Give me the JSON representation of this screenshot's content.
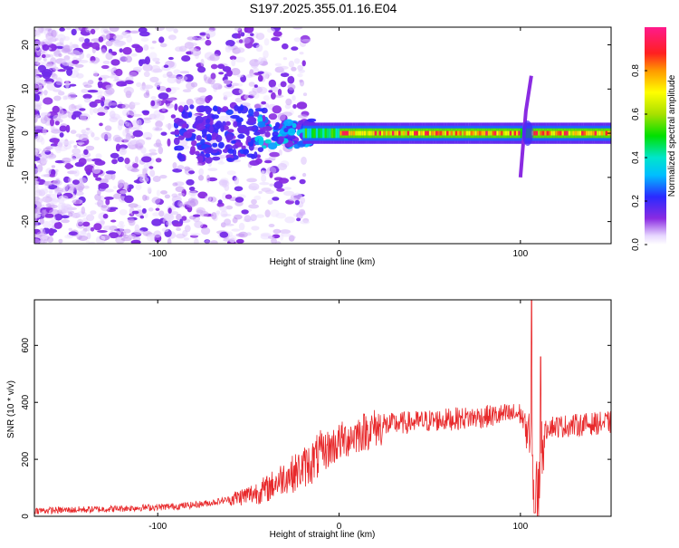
{
  "title": "S197.2025.355.01.16.E04",
  "chart_data": [
    {
      "type": "heatmap",
      "xlabel": "Height of straight line (km)",
      "ylabel": "Frequency (Hz)",
      "xlim": [
        -168,
        150
      ],
      "ylim": [
        -25,
        24
      ],
      "x_ticks": [
        -100,
        0,
        100
      ],
      "y_ticks": [
        -20,
        -10,
        0,
        10,
        20
      ],
      "x_tick_labels": [
        "-100",
        "0",
        "100"
      ],
      "y_tick_labels": [
        "-20",
        "-10",
        "0",
        "10",
        "20"
      ],
      "colorbar": {
        "label": "Normalized spectral amplitude",
        "range": [
          0,
          1
        ],
        "ticks": [
          0.0,
          0.2,
          0.4,
          0.6,
          0.8
        ],
        "tick_labels": [
          "0.0",
          "0.2",
          "0.4",
          "0.6",
          "0.8"
        ],
        "colormap": "rainbow (white-violet-blue-cyan-green-yellow-red-magenta)"
      },
      "features": [
        {
          "name": "noise scatter",
          "x_range": [
            -168,
            -20
          ],
          "freq_range": [
            -25,
            24
          ],
          "amplitude": 0.05
        },
        {
          "name": "central line",
          "x_range": [
            -80,
            150
          ],
          "freq": 0,
          "amplitude_max": 0.9
        },
        {
          "name": "spike",
          "x": 103,
          "freq_range": [
            -10,
            13
          ]
        }
      ]
    },
    {
      "type": "line",
      "xlabel": "Height of straight line (km)",
      "ylabel": "SNR (10 * v/v)",
      "xlim": [
        -168,
        150
      ],
      "ylim": [
        0,
        760
      ],
      "x_ticks": [
        -100,
        0,
        100
      ],
      "y_ticks": [
        0,
        200,
        400,
        600
      ],
      "x_tick_labels": [
        "-100",
        "0",
        "100"
      ],
      "y_tick_labels": [
        "0",
        "200",
        "400",
        "600"
      ],
      "series": [
        {
          "name": "SNR",
          "color": "#e8292b",
          "x": [
            -168,
            -150,
            -130,
            -110,
            -100,
            -90,
            -80,
            -70,
            -60,
            -50,
            -40,
            -30,
            -25,
            -20,
            -15,
            -10,
            -5,
            0,
            5,
            10,
            15,
            20,
            30,
            40,
            50,
            60,
            70,
            80,
            90,
            100,
            104,
            106,
            108,
            110,
            112,
            115,
            120,
            130,
            140,
            150
          ],
          "values": [
            20,
            22,
            25,
            30,
            32,
            35,
            40,
            48,
            60,
            75,
            95,
            140,
            150,
            170,
            190,
            220,
            240,
            260,
            275,
            290,
            300,
            310,
            325,
            330,
            335,
            340,
            345,
            350,
            355,
            360,
            300,
            200,
            100,
            80,
            250,
            320,
            315,
            320,
            325,
            330
          ]
        }
      ],
      "annotations": [
        {
          "label": "spike",
          "x": 106,
          "value": 760
        },
        {
          "label": "dip",
          "x": 108,
          "value": 15
        },
        {
          "label": "spike",
          "x": 111,
          "value": 560
        }
      ]
    }
  ]
}
